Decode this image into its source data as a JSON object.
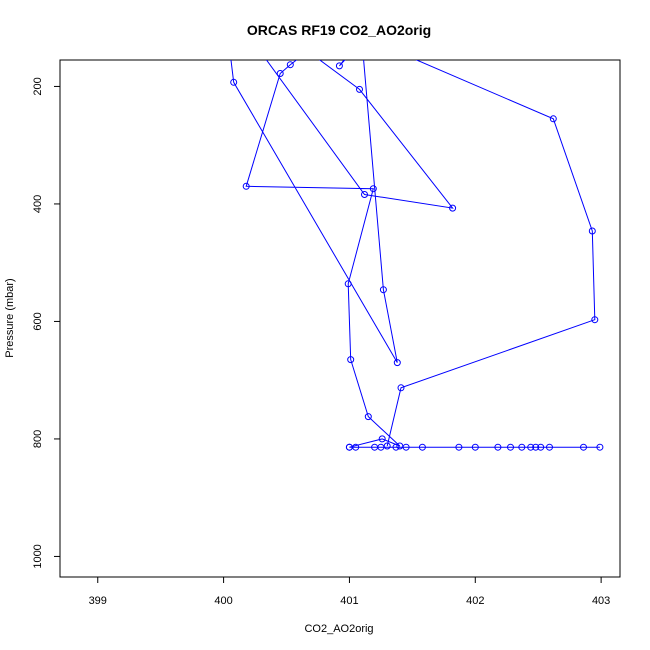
{
  "chart_data": {
    "type": "line",
    "title": "ORCAS RF19 CO2_AO2orig",
    "xlabel": "CO2_AO2orig",
    "ylabel": "Pressure (mbar)",
    "xlim": [
      398.7,
      403.15
    ],
    "ylim": [
      1035,
      155
    ],
    "y_reversed": true,
    "x_ticks": [
      399,
      400,
      401,
      402,
      403
    ],
    "y_ticks": [
      200,
      400,
      600,
      800,
      1000
    ],
    "grid": false,
    "legend": "none",
    "marker": "open-circle",
    "series": [
      {
        "color": "#0000ff",
        "points": [
          [
            401.0,
            814
          ],
          [
            401.05,
            814
          ],
          [
            401.2,
            814
          ],
          [
            401.25,
            814
          ],
          [
            401.37,
            814
          ],
          [
            401.45,
            814
          ],
          [
            401.58,
            814
          ],
          [
            401.87,
            814
          ],
          [
            402.0,
            814
          ],
          [
            402.18,
            814
          ],
          [
            402.28,
            814
          ],
          [
            402.37,
            814
          ],
          [
            402.44,
            814
          ],
          [
            402.48,
            814
          ],
          [
            402.52,
            814
          ],
          [
            402.59,
            814
          ],
          [
            402.86,
            814
          ],
          [
            402.99,
            814
          ],
          [
            401.0,
            814
          ],
          [
            401.26,
            800
          ],
          [
            401.4,
            812
          ],
          [
            401.15,
            762
          ],
          [
            401.01,
            665
          ],
          [
            400.99,
            536
          ],
          [
            401.19,
            374
          ],
          [
            400.18,
            370
          ],
          [
            400.45,
            178
          ],
          [
            400.53,
            163
          ],
          [
            400.67,
            140
          ],
          [
            401.08,
            205
          ],
          [
            401.82,
            407
          ],
          [
            401.12,
            384
          ],
          [
            400.29,
            140
          ],
          [
            400.05,
            140
          ],
          [
            400.08,
            193
          ],
          [
            401.38,
            670
          ],
          [
            401.27,
            546
          ],
          [
            401.1,
            123
          ],
          [
            400.92,
            165
          ],
          [
            401.1,
            115
          ],
          [
            402.62,
            255
          ],
          [
            402.93,
            446
          ],
          [
            402.95,
            597
          ],
          [
            401.41,
            713
          ],
          [
            401.3,
            812
          ]
        ]
      }
    ]
  }
}
